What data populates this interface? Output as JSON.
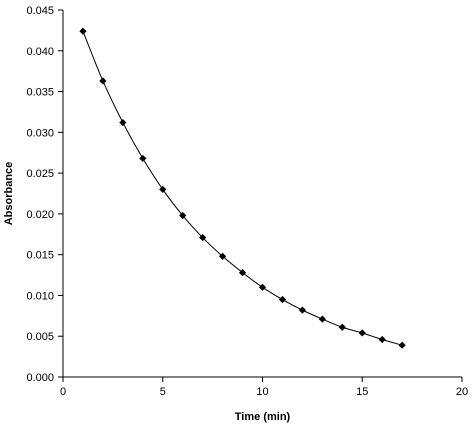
{
  "chart_data": {
    "type": "scatter",
    "title": "",
    "xlabel": "Time (min)",
    "ylabel": "Absorbance",
    "xlim": [
      0,
      20
    ],
    "ylim": [
      0,
      0.045
    ],
    "x_ticks": [
      "0",
      "5",
      "10",
      "15",
      "20"
    ],
    "y_ticks": [
      "0.000",
      "0.005",
      "0.010",
      "0.015",
      "0.020",
      "0.025",
      "0.030",
      "0.035",
      "0.040",
      "0.045"
    ],
    "grid": false,
    "legend": "none",
    "marker": "diamond",
    "line": "smooth",
    "color": "#000000",
    "series": [
      {
        "x": [
          1,
          2,
          3,
          4,
          5,
          6,
          7,
          8,
          9,
          10,
          11,
          12,
          13,
          14,
          15,
          16,
          17
        ],
        "y": [
          0.0424,
          0.0363,
          0.0312,
          0.0268,
          0.023,
          0.0198,
          0.0171,
          0.0148,
          0.0128,
          0.011,
          0.0095,
          0.0082,
          0.0071,
          0.0061,
          0.0054,
          0.0046,
          0.0039
        ]
      }
    ]
  }
}
